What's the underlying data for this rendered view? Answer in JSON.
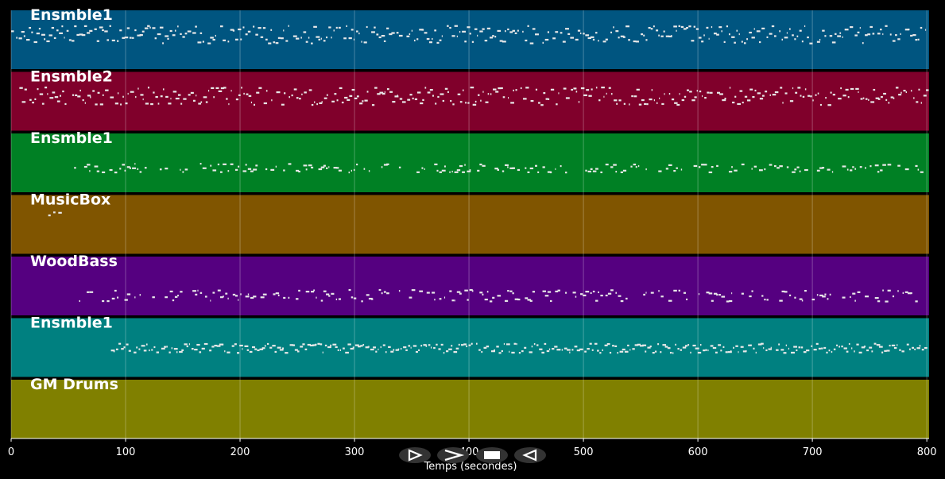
{
  "chart_data": {
    "type": "piano-roll",
    "xlabel": "Temps (secondes)",
    "xlim": [
      0,
      802
    ],
    "x_ticks": [
      0,
      100,
      200,
      300,
      400,
      500,
      600,
      700,
      800
    ],
    "grid": true,
    "tracks": [
      {
        "name": "Ensmble1",
        "color": "#005580",
        "note_start": 0,
        "note_end": 800,
        "density": 0.9,
        "band": [
          0.25,
          0.55
        ]
      },
      {
        "name": "Ensmble2",
        "color": "#80002b",
        "note_start": 5,
        "note_end": 800,
        "density": 0.9,
        "band": [
          0.25,
          0.55
        ]
      },
      {
        "name": "Ensmble1",
        "color": "#008024",
        "note_start": 55,
        "note_end": 800,
        "density": 0.55,
        "band": [
          0.5,
          0.65
        ]
      },
      {
        "name": "MusicBox",
        "color": "#805500",
        "note_start": 28,
        "note_end": 44,
        "density": 0.4,
        "band": [
          0.28,
          0.34
        ]
      },
      {
        "name": "WoodBass",
        "color": "#550080",
        "note_start": 55,
        "note_end": 800,
        "density": 0.55,
        "band": [
          0.55,
          0.75
        ]
      },
      {
        "name": "Ensmble1",
        "color": "#008080",
        "note_start": 85,
        "note_end": 800,
        "density": 0.95,
        "band": [
          0.42,
          0.58
        ]
      },
      {
        "name": "GM Drums",
        "color": "#808000",
        "note_start": 0,
        "note_end": 0,
        "density": 0,
        "band": [
          0.5,
          0.5
        ]
      }
    ]
  },
  "controls": [
    {
      "name": "play-button",
      "icon": "play-icon"
    },
    {
      "name": "fast-forward-button",
      "icon": "fast-forward-icon"
    },
    {
      "name": "stop-button",
      "icon": "stop-icon"
    },
    {
      "name": "rewind-button",
      "icon": "rewind-icon"
    }
  ]
}
